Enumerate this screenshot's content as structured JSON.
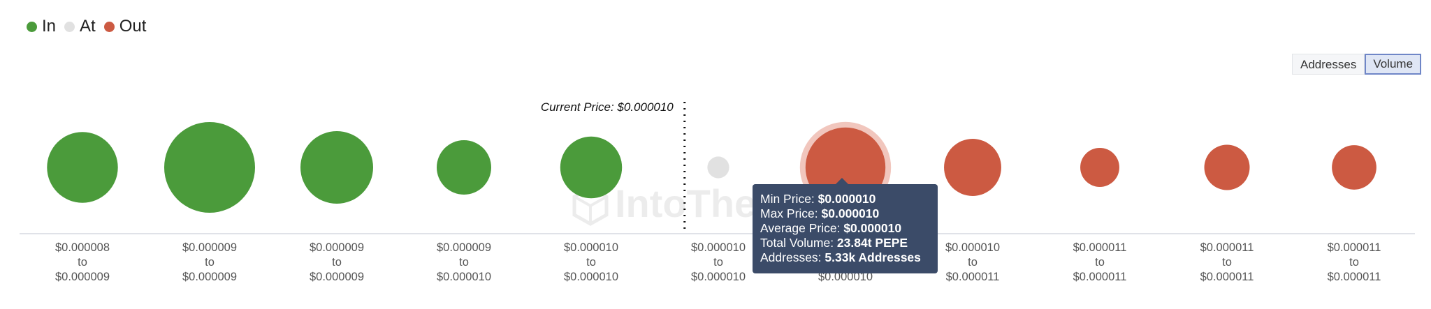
{
  "legend": [
    {
      "label": "In",
      "color": "#4b9b3b"
    },
    {
      "label": "At",
      "color": "#e1e1e1"
    },
    {
      "label": "Out",
      "color": "#cc5a42"
    }
  ],
  "toggle": {
    "addresses_label": "Addresses",
    "volume_label": "Volume",
    "active": "Volume"
  },
  "watermark": "IntoThe",
  "chart_data": {
    "type": "bubble",
    "current_price_label": "Current Price: $0.000010",
    "current_price_position_after_bin": 5,
    "bins": [
      {
        "from": "$0.000008",
        "to": "$0.000009",
        "status": "In",
        "relative_size": 0.78
      },
      {
        "from": "$0.000009",
        "to": "$0.000009",
        "status": "In",
        "relative_size": 1.0
      },
      {
        "from": "$0.000009",
        "to": "$0.000009",
        "status": "In",
        "relative_size": 0.8
      },
      {
        "from": "$0.000009",
        "to": "$0.000010",
        "status": "In",
        "relative_size": 0.6
      },
      {
        "from": "$0.000010",
        "to": "$0.000010",
        "status": "In",
        "relative_size": 0.68
      },
      {
        "from": "$0.000010",
        "to": "$0.000010",
        "status": "At",
        "relative_size": 0.24
      },
      {
        "from": "$0.000010",
        "to": "$0.000010",
        "status": "Out",
        "relative_size": 0.88,
        "highlighted": true
      },
      {
        "from": "$0.000010",
        "to": "$0.000011",
        "status": "Out",
        "relative_size": 0.63
      },
      {
        "from": "$0.000011",
        "to": "$0.000011",
        "status": "Out",
        "relative_size": 0.43
      },
      {
        "from": "$0.000011",
        "to": "$0.000011",
        "status": "Out",
        "relative_size": 0.5
      },
      {
        "from": "$0.000011",
        "to": "$0.000011",
        "status": "Out",
        "relative_size": 0.49
      }
    ],
    "range_word": "to",
    "colors": {
      "In": "#4b9b3b",
      "At": "#e1e1e1",
      "Out": "#cc5a42",
      "highlight_ring": "#f1c6bd"
    }
  },
  "tooltip": {
    "rows": [
      {
        "key": "Min Price: ",
        "value": "$0.000010"
      },
      {
        "key": "Max Price: ",
        "value": "$0.000010"
      },
      {
        "key": "Average Price: ",
        "value": "$0.000010"
      },
      {
        "key": "Total Volume: ",
        "value": "23.84t PEPE"
      },
      {
        "key": "Addresses: ",
        "value": "5.33k Addresses"
      }
    ]
  }
}
